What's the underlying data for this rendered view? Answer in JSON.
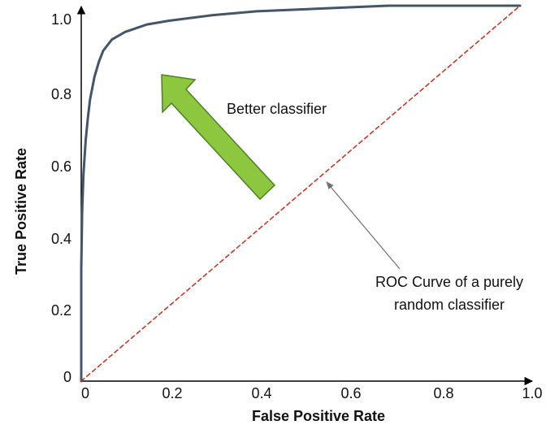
{
  "chart_data": {
    "type": "line",
    "xlabel": "False Positive Rate",
    "ylabel": "True Positive Rate",
    "xlim": [
      0,
      1.0
    ],
    "ylim": [
      0,
      1.0
    ],
    "x_ticks": [
      "0",
      "0.2",
      "0.4",
      "0.6",
      "0.8",
      "1.0"
    ],
    "y_ticks": [
      "0",
      "0.2",
      "0.4",
      "0.6",
      "0.8",
      "1.0"
    ],
    "grid": false,
    "series": [
      {
        "style": "solid",
        "color": "#44546A",
        "points": [
          [
            0.0,
            0.0
          ],
          [
            0.0,
            0.3
          ],
          [
            0.002,
            0.45
          ],
          [
            0.005,
            0.55
          ],
          [
            0.01,
            0.64
          ],
          [
            0.015,
            0.7
          ],
          [
            0.02,
            0.75
          ],
          [
            0.03,
            0.81
          ],
          [
            0.04,
            0.85
          ],
          [
            0.05,
            0.88
          ],
          [
            0.07,
            0.91
          ],
          [
            0.1,
            0.93
          ],
          [
            0.15,
            0.95
          ],
          [
            0.2,
            0.96
          ],
          [
            0.3,
            0.975
          ],
          [
            0.4,
            0.985
          ],
          [
            0.5,
            0.99
          ],
          [
            0.6,
            0.995
          ],
          [
            0.7,
            1.0
          ],
          [
            0.8,
            1.0
          ],
          [
            0.9,
            1.0
          ],
          [
            1.0,
            1.0
          ]
        ]
      },
      {
        "style": "dashed",
        "color": "#C0392B",
        "points": [
          [
            0.0,
            0.0
          ],
          [
            1.0,
            1.0
          ]
        ]
      }
    ],
    "annotations": {
      "better": "Better classifier",
      "random_line1": "ROC Curve of a purely",
      "random_line2": "random classifier"
    },
    "colors": {
      "arrow_fill": "#8DC63F",
      "arrow_stroke": "#4F7F27",
      "pointer": "#707070",
      "axis": "#000000"
    }
  }
}
